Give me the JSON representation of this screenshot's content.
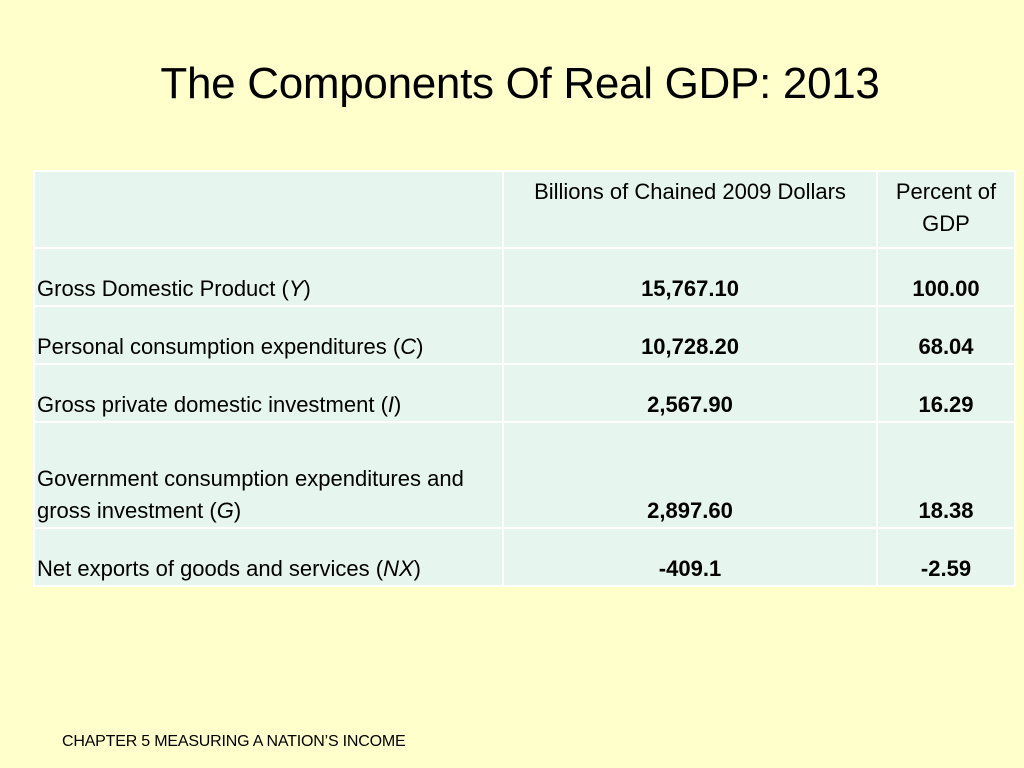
{
  "slide": {
    "title": "The Components Of Real GDP: 2013",
    "footer": "CHAPTER 5 MEASURING A NATION’S INCOME"
  },
  "table": {
    "headers": [
      "",
      "Billions of Chained 2009 Dollars",
      "Percent of GDP"
    ],
    "rows": [
      {
        "label": "Gross Domestic Product (",
        "symbol": "Y",
        "close": ")",
        "value": "15,767.10",
        "percent": "100.00"
      },
      {
        "label": "Personal consumption expenditures (",
        "symbol": "C",
        "close": ")",
        "value": "10,728.20",
        "percent": "68.04"
      },
      {
        "label": "Gross private domestic investment (",
        "symbol": "I",
        "close": ")",
        "value": "2,567.90",
        "percent": "16.29"
      },
      {
        "label": "Government consumption expenditures and gross investment (",
        "symbol": "G",
        "close": ")",
        "value": "2,897.60",
        "percent": "18.38"
      },
      {
        "label": "Net exports of goods and services (",
        "symbol": "NX",
        "close": ")",
        "value": "-409.1",
        "percent": "-2.59"
      }
    ]
  }
}
